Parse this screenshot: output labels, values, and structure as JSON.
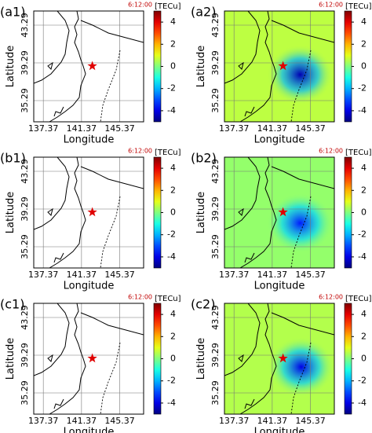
{
  "chart_data": [
    {
      "type": "scatter-map",
      "label": "(a1)",
      "time": "6:12:00",
      "xlabel": "Longitude",
      "ylabel": "Latitude",
      "xlim": [
        136.37,
        147.87
      ],
      "ylim": [
        33.04,
        44.79
      ],
      "xticks": [
        137.37,
        141.37,
        145.37
      ],
      "yticks": [
        35.29,
        39.29,
        43.29
      ],
      "grid": true,
      "epicenter": {
        "x": 142.5,
        "y": 38.96
      },
      "colorbar": {
        "label": "[TECu]",
        "lim": [
          -5,
          5
        ],
        "ticks": [
          4,
          2,
          0,
          -2,
          -4
        ]
      }
    },
    {
      "type": "heatmap-map",
      "label": "(a2)",
      "time": "6:12:00",
      "xlabel": "Longitude",
      "ylabel": "Latitude",
      "xlim": [
        136.37,
        147.87
      ],
      "ylim": [
        33.04,
        44.79
      ],
      "xticks": [
        137.37,
        141.37,
        145.37
      ],
      "yticks": [
        35.29,
        39.29,
        43.29
      ],
      "grid": true,
      "epicenter": {
        "x": 142.5,
        "y": 38.96
      },
      "background_value": 0.6,
      "minimum": {
        "x": 144.29,
        "y": 38.04,
        "value": -4.5
      },
      "colorbar": {
        "label": "[TECu]",
        "lim": [
          -5,
          5
        ],
        "ticks": [
          4,
          2,
          0,
          -2,
          -4
        ]
      }
    },
    {
      "type": "scatter-map",
      "label": "(b1)",
      "time": "6:12:00",
      "xlabel": "Longitude",
      "ylabel": "Latitude",
      "xlim": [
        136.37,
        147.87
      ],
      "ylim": [
        33.04,
        44.79
      ],
      "xticks": [
        137.37,
        141.37,
        145.37
      ],
      "yticks": [
        35.29,
        39.29,
        43.29
      ],
      "grid": true,
      "epicenter": {
        "x": 142.5,
        "y": 38.96
      },
      "colorbar": {
        "label": "[TECu]",
        "lim": [
          -5,
          5
        ],
        "ticks": [
          4,
          2,
          0,
          -2,
          -4
        ]
      }
    },
    {
      "type": "heatmap-map",
      "label": "(b2)",
      "time": "6:12:00",
      "xlabel": "Longitude",
      "ylabel": "Latitude",
      "xlim": [
        136.37,
        147.87
      ],
      "ylim": [
        33.04,
        44.79
      ],
      "xticks": [
        137.37,
        141.37,
        145.37
      ],
      "yticks": [
        35.29,
        39.29,
        43.29
      ],
      "grid": true,
      "epicenter": {
        "x": 142.5,
        "y": 38.96
      },
      "background_value": 0.2,
      "minimum": {
        "x": 144.29,
        "y": 37.8,
        "value": -3.5
      },
      "colorbar": {
        "label": "[TECu]",
        "lim": [
          -5,
          5
        ],
        "ticks": [
          4,
          2,
          0,
          -2,
          -4
        ]
      }
    },
    {
      "type": "scatter-map",
      "label": "(c1)",
      "time": "6:12:00",
      "xlabel": "Longitude",
      "ylabel": "Latitude",
      "xlim": [
        136.37,
        147.87
      ],
      "ylim": [
        33.04,
        44.79
      ],
      "xticks": [
        137.37,
        141.37,
        145.37
      ],
      "yticks": [
        35.29,
        39.29,
        43.29
      ],
      "grid": true,
      "epicenter": {
        "x": 142.5,
        "y": 38.96
      },
      "colorbar": {
        "label": "[TECu]",
        "lim": [
          -5,
          5
        ],
        "ticks": [
          4,
          2,
          0,
          -2,
          -4
        ]
      }
    },
    {
      "type": "heatmap-map",
      "label": "(c2)",
      "time": "6:12:00",
      "xlabel": "Longitude",
      "ylabel": "Latitude",
      "xlim": [
        136.37,
        147.87
      ],
      "ylim": [
        33.04,
        44.79
      ],
      "xticks": [
        137.37,
        141.37,
        145.37
      ],
      "yticks": [
        35.29,
        39.29,
        43.29
      ],
      "grid": true,
      "epicenter": {
        "x": 142.5,
        "y": 38.96
      },
      "background_value": 0.5,
      "minimum": {
        "x": 144.4,
        "y": 38.04,
        "value": -4
      },
      "colorbar": {
        "label": "[TECu]",
        "lim": [
          -5,
          5
        ],
        "ticks": [
          4,
          2,
          0,
          -2,
          -4
        ]
      }
    }
  ]
}
